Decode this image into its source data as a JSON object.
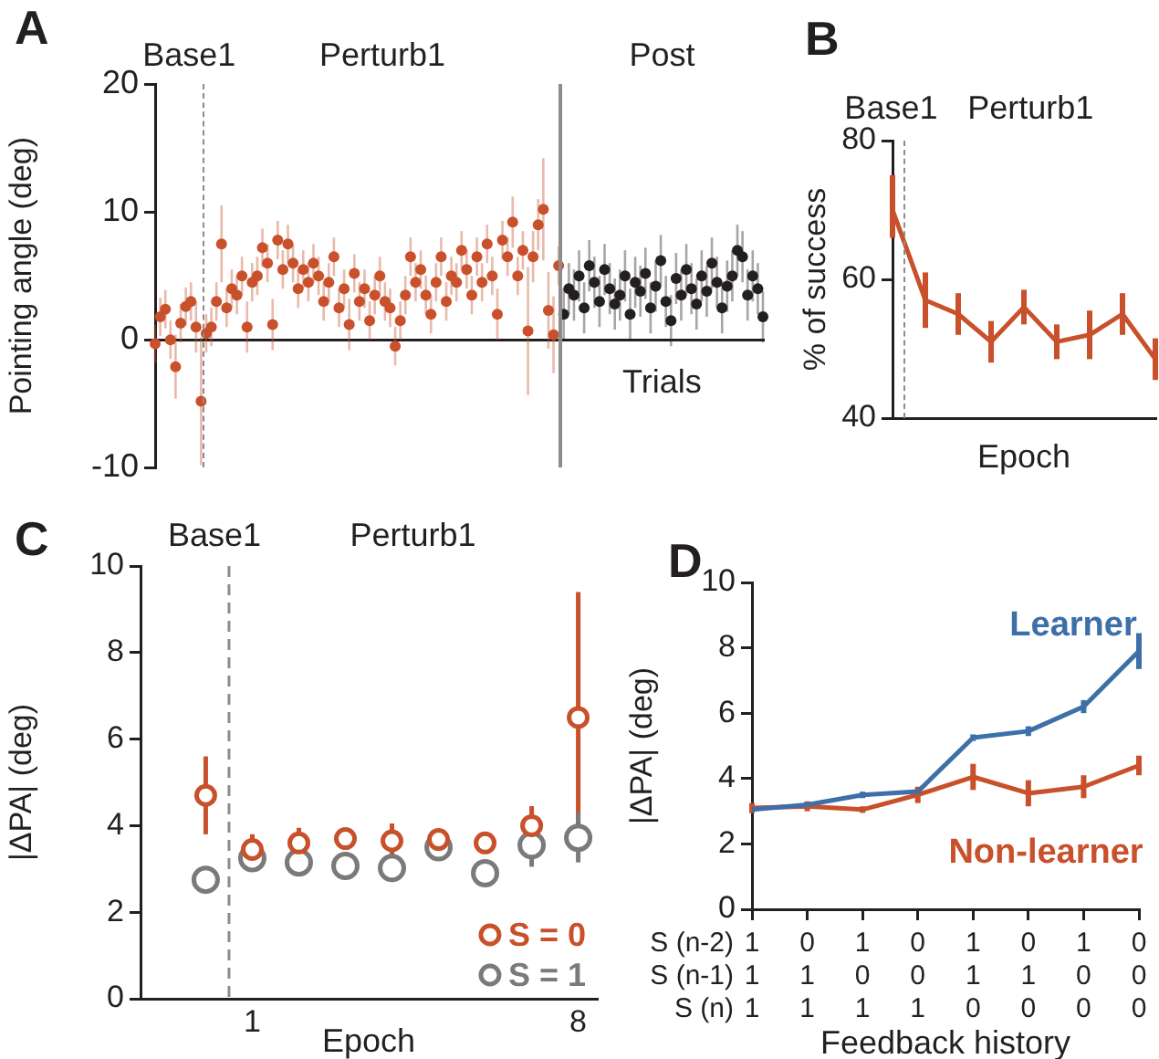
{
  "chart_data": [
    {
      "type": "scatter",
      "title": "A",
      "ylabel": "Pointing angle (deg)",
      "marker": "circle",
      "tick_labels": "y",
      "categories": [
        null,
        null,
        null,
        null,
        null,
        null,
        null,
        null,
        null,
        null,
        null,
        null,
        null,
        null,
        null,
        null,
        null,
        null,
        null,
        null,
        null,
        null,
        null,
        null,
        null,
        null,
        null,
        null,
        null,
        null,
        null,
        null,
        null,
        null,
        null,
        null,
        null,
        null,
        null,
        null,
        null,
        null,
        null,
        null,
        null,
        null,
        null,
        null,
        null,
        null,
        null,
        null,
        null,
        null,
        null,
        null,
        null,
        null,
        null,
        null,
        null,
        null,
        null,
        null,
        null,
        null,
        null,
        null,
        null,
        null,
        null,
        null,
        null,
        null,
        null,
        null,
        null,
        null,
        null,
        null,
        null,
        null,
        null,
        null,
        null,
        null,
        null,
        null,
        null,
        null,
        null,
        null,
        null,
        null,
        null,
        null,
        null,
        null,
        null,
        null,
        null,
        null,
        null,
        null,
        null,
        null,
        null,
        null,
        null,
        null,
        null,
        null,
        null,
        null,
        null,
        null,
        null,
        null,
        null,
        null
      ],
      "ylim": [
        -10,
        20
      ],
      "yticks": [
        -10,
        0,
        10,
        20
      ],
      "series": [
        {
          "color": "#c8502a",
          "values": [
            -0.3,
            1.8,
            2.4,
            0.0,
            -2.1,
            1.3,
            2.6,
            3.0,
            1.0,
            -4.8,
            0.5,
            1.0,
            3.0,
            7.5,
            2.5,
            4.0,
            3.5,
            5.0,
            1.0,
            4.5,
            5.0,
            7.2,
            6.0,
            1.2,
            7.8,
            5.5,
            7.5,
            6.0,
            4.0,
            5.5,
            4.5,
            6.0,
            5.0,
            3.0,
            4.5,
            6.5,
            2.5,
            4.0,
            1.2,
            5.2,
            3.0,
            4.0,
            1.5,
            3.5,
            5.0,
            3.0,
            2.5,
            -0.5,
            1.5,
            3.5,
            6.5,
            4.5,
            5.5,
            3.5,
            2.0,
            4.5,
            6.5,
            3.0,
            5.0,
            4.5,
            7.0,
            5.5,
            3.5,
            6.5,
            4.5,
            7.5,
            5.0,
            2.0,
            7.8,
            6.5,
            9.2,
            5.0,
            7.0,
            0.7,
            6.5,
            9.0,
            10.2,
            2.3,
            0.4,
            5.8,
            null,
            null,
            null,
            null,
            null,
            null,
            null,
            null,
            null,
            null,
            null,
            null,
            null,
            null,
            null,
            null,
            null,
            null,
            null,
            null,
            null,
            null,
            null,
            null,
            null,
            null,
            null,
            null,
            null,
            null,
            null,
            null,
            null,
            null,
            null,
            null,
            null,
            null,
            null,
            null
          ],
          "errors": [
            1.5,
            1.5,
            1.5,
            1.5,
            2.5,
            1.5,
            1.5,
            1.5,
            2,
            5,
            1.5,
            1.5,
            1.5,
            3,
            1.5,
            1.5,
            1.5,
            1.5,
            2,
            1.5,
            1.5,
            1.5,
            1.5,
            2,
            1.5,
            1.5,
            1.5,
            1.5,
            1.5,
            1.5,
            1.5,
            1.5,
            1.5,
            1.5,
            1.5,
            1.5,
            1.5,
            1.5,
            2,
            1.5,
            1.5,
            1.5,
            1.5,
            1.5,
            1.5,
            1.5,
            1.5,
            1.5,
            1.5,
            1.5,
            1.5,
            1.5,
            1.5,
            1.5,
            1.5,
            1.5,
            1.5,
            1.5,
            1.5,
            1.5,
            1.5,
            1.5,
            1.5,
            1.5,
            1.5,
            1.5,
            1.5,
            2,
            1.5,
            1.5,
            2,
            1.5,
            1.5,
            5,
            2,
            2,
            4,
            3,
            3,
            1.5,
            null,
            null,
            null,
            null,
            null,
            null,
            null,
            null,
            null,
            null,
            null,
            null,
            null,
            null,
            null,
            null,
            null,
            null,
            null,
            null,
            null,
            null,
            null,
            null,
            null,
            null,
            null,
            null,
            null,
            null,
            null,
            null,
            null,
            null,
            null,
            null,
            null,
            null,
            null,
            null
          ]
        },
        {
          "color": "#231f20",
          "values": [
            null,
            null,
            null,
            null,
            null,
            null,
            null,
            null,
            null,
            null,
            null,
            null,
            null,
            null,
            null,
            null,
            null,
            null,
            null,
            null,
            null,
            null,
            null,
            null,
            null,
            null,
            null,
            null,
            null,
            null,
            null,
            null,
            null,
            null,
            null,
            null,
            null,
            null,
            null,
            null,
            null,
            null,
            null,
            null,
            null,
            null,
            null,
            null,
            null,
            null,
            null,
            null,
            null,
            null,
            null,
            null,
            null,
            null,
            null,
            null,
            null,
            null,
            null,
            null,
            null,
            null,
            null,
            null,
            null,
            null,
            null,
            null,
            null,
            null,
            null,
            null,
            null,
            null,
            null,
            null,
            2.0,
            4.0,
            3.5,
            5.0,
            2.5,
            5.8,
            4.5,
            3.0,
            5.5,
            4.0,
            2.8,
            3.5,
            5.0,
            2.0,
            4.5,
            3.8,
            5.2,
            2.5,
            4.2,
            6.2,
            3.0,
            1.5,
            4.8,
            3.5,
            5.5,
            4.0,
            2.8,
            5.0,
            3.8,
            6.0,
            4.5,
            2.5,
            4.2,
            5.0,
            7.0,
            6.5,
            3.5,
            5.0,
            4.0,
            1.8
          ],
          "errors": [
            null,
            null,
            null,
            null,
            null,
            null,
            null,
            null,
            null,
            null,
            null,
            null,
            null,
            null,
            null,
            null,
            null,
            null,
            null,
            null,
            null,
            null,
            null,
            null,
            null,
            null,
            null,
            null,
            null,
            null,
            null,
            null,
            null,
            null,
            null,
            null,
            null,
            null,
            null,
            null,
            null,
            null,
            null,
            null,
            null,
            null,
            null,
            null,
            null,
            null,
            null,
            null,
            null,
            null,
            null,
            null,
            null,
            null,
            null,
            null,
            null,
            null,
            null,
            null,
            null,
            null,
            null,
            null,
            null,
            null,
            null,
            null,
            null,
            null,
            null,
            null,
            null,
            null,
            null,
            null,
            2,
            2,
            2,
            2,
            2,
            2,
            2,
            2,
            2,
            2,
            2,
            2,
            2,
            2,
            2,
            2,
            2,
            2,
            2,
            2,
            2,
            2,
            2,
            2,
            2,
            2,
            2,
            2,
            2,
            2,
            2,
            2,
            2,
            2,
            2,
            2,
            2,
            2,
            2,
            2
          ]
        }
      ],
      "annotations": [
        "Base1",
        "Perturb1",
        "Post",
        "Trials"
      ]
    },
    {
      "type": "line",
      "title": "B",
      "xlabel": "Epoch",
      "ylabel": "% of success",
      "tick_labels": "y",
      "categories": [
        null,
        null,
        null,
        null,
        null,
        null,
        null,
        null,
        null
      ],
      "ylim": [
        40,
        80
      ],
      "yticks": [
        40,
        60,
        80
      ],
      "series": [
        {
          "color": "#c8502a",
          "values": [
            70,
            57,
            55,
            51,
            56,
            51,
            52,
            55,
            48.5
          ],
          "errors": [
            [
              66,
              75
            ],
            4,
            3,
            3,
            2.5,
            2.5,
            3.5,
            3,
            3
          ]
        }
      ],
      "annotations": [
        "Base1",
        "Perturb1"
      ]
    },
    {
      "type": "scatter",
      "title": "C",
      "xlabel": "Epoch",
      "ylabel": "|ΔPA| (deg)",
      "marker": "circle",
      "legend": "bottom right",
      "x": [
        0,
        1,
        2,
        3,
        4,
        5,
        6,
        7,
        8
      ],
      "xlim": [
        -1.4,
        8.4
      ],
      "xticks": [
        1,
        8
      ],
      "ylim": [
        0,
        10
      ],
      "yticks": [
        0,
        2,
        4,
        6,
        8,
        10
      ],
      "series": [
        {
          "name": "S = 0",
          "color": "#c8502a",
          "values": [
            4.7,
            3.45,
            3.6,
            3.7,
            3.65,
            3.68,
            3.6,
            4.0,
            6.5
          ],
          "errors": [
            0.9,
            0.35,
            0.35,
            0.2,
            0.4,
            0.2,
            null,
            0.45,
            [
              3.6,
              9.4
            ]
          ]
        },
        {
          "name": "S = 1",
          "color": "#7a7a7a",
          "values": [
            2.75,
            3.25,
            3.15,
            3.07,
            3.02,
            3.5,
            2.9,
            3.55,
            3.72
          ],
          "errors": [
            null,
            0.2,
            null,
            null,
            null,
            0.15,
            null,
            [
              3.05,
              4.0
            ],
            [
              3.15,
              4.3
            ]
          ]
        }
      ],
      "ref_lines": [
        {
          "axis": "x",
          "value": 0.5,
          "color": "#8c8c8c",
          "line_style": "dashed"
        }
      ],
      "annotations": [
        "Base1",
        "Perturb1"
      ]
    },
    {
      "type": "line",
      "title": "D",
      "xlabel": "Feedback history",
      "ylabel": "|ΔPA| (deg)",
      "categories": [
        "1\n1\n1",
        "0\n1\n1",
        "1\n0\n1",
        "0\n0\n1",
        "1\n1\n0",
        "0\n1\n0",
        "1\n0\n0",
        "0\n0\n0"
      ],
      "ylim": [
        0,
        10
      ],
      "yticks": [
        0,
        2,
        4,
        6,
        8,
        10
      ],
      "series": [
        {
          "name": "Learner",
          "color": "#3d6fa8",
          "values": [
            3.05,
            3.2,
            3.5,
            3.6,
            5.25,
            5.45,
            6.2,
            7.9
          ],
          "errors": [
            0.1,
            0.1,
            0.1,
            0.1,
            0.1,
            0.15,
            0.2,
            0.55
          ]
        },
        {
          "name": "Non-learner",
          "color": "#c8502a",
          "values": [
            3.1,
            3.15,
            3.05,
            3.5,
            4.05,
            3.55,
            3.75,
            4.4
          ],
          "errors": [
            0.15,
            0.15,
            0.1,
            0.25,
            0.4,
            0.4,
            0.35,
            0.3
          ]
        }
      ],
      "annotations": [
        "S (n-2)",
        "S (n-1)",
        "S (n)"
      ]
    }
  ]
}
